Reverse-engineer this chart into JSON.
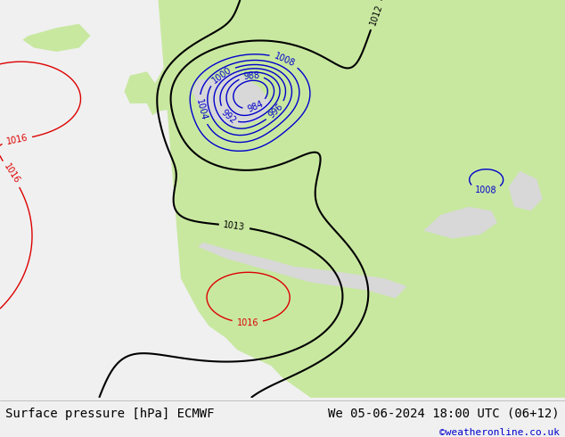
{
  "title_left": "Surface pressure [hPa] ECMWF",
  "title_right": "We 05-06-2024 18:00 UTC (06+12)",
  "credit": "©weatheronline.co.uk",
  "ocean_color": "#d8d8d8",
  "land_color": "#c8e8a0",
  "bottom_bar_color": "#f0f0f0",
  "title_fontsize": 10,
  "credit_color": "#0000cc",
  "contour_blue_color": "#0000cc",
  "contour_red_color": "#dd0000",
  "contour_black_color": "#000000",
  "contour_lw": 1.0,
  "contour_black_lw": 1.5,
  "label_fontsize": 7,
  "figwidth": 6.34,
  "figheight": 4.9,
  "dpi": 100
}
